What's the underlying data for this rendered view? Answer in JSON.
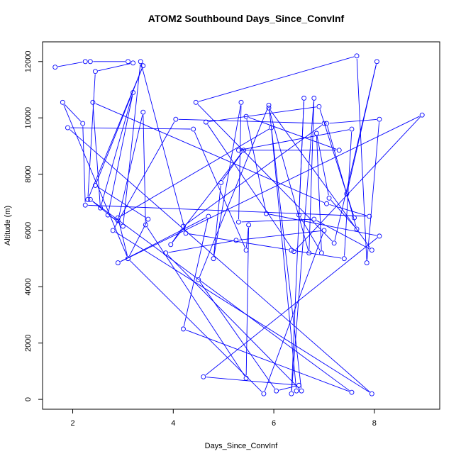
{
  "chart_data": {
    "type": "line",
    "title": "ATOM2 Southbound Days_Since_ConvInf",
    "xlabel": "Days_Since_ConvInf",
    "ylabel": "Altitude (m)",
    "xlim": [
      1.4,
      9.3
    ],
    "ylim": [
      -350,
      12700
    ],
    "xticks": [
      2,
      4,
      6,
      8
    ],
    "xtick_labels": [
      "2",
      "4",
      "6",
      "8"
    ],
    "yticks": [
      0,
      2000,
      4000,
      6000,
      8000,
      10000,
      12000
    ],
    "ytick_labels": [
      "0",
      "2000",
      "4000",
      "6000",
      "8000",
      "10000",
      "12000"
    ],
    "grid": false,
    "series": [
      {
        "color": "#0000ff",
        "marker": "open-circle",
        "points": [
          [
            1.65,
            11800
          ],
          [
            2.25,
            12000
          ],
          [
            2.35,
            12000
          ],
          [
            3.1,
            12000
          ],
          [
            3.2,
            11950
          ],
          [
            2.45,
            11650
          ],
          [
            2.3,
            7100
          ],
          [
            3.4,
            11850
          ],
          [
            2.45,
            7600
          ],
          [
            3.5,
            6400
          ],
          [
            3.1,
            5000
          ],
          [
            1.8,
            10550
          ],
          [
            2.2,
            9800
          ],
          [
            2.25,
            6900
          ],
          [
            7.9,
            6500
          ],
          [
            7.05,
            6950
          ],
          [
            2.4,
            10550
          ],
          [
            2.55,
            6800
          ],
          [
            3.2,
            10900
          ],
          [
            2.7,
            6550
          ],
          [
            2.9,
            6350
          ],
          [
            3.4,
            10200
          ],
          [
            3.45,
            6200
          ],
          [
            5.45,
            750
          ],
          [
            5.5,
            6200
          ],
          [
            5.45,
            5300
          ],
          [
            4.4,
            9600
          ],
          [
            1.9,
            9650
          ],
          [
            7.95,
            200
          ],
          [
            2.8,
            6000
          ],
          [
            4.05,
            9950
          ],
          [
            7.0,
            9800
          ],
          [
            4.2,
            6150
          ],
          [
            3.95,
            5500
          ],
          [
            5.4,
            8850
          ],
          [
            4.95,
            7700
          ],
          [
            4.8,
            5000
          ],
          [
            5.35,
            10550
          ],
          [
            5.3,
            6300
          ],
          [
            6.8,
            6400
          ],
          [
            7.95,
            5300
          ],
          [
            5.9,
            10350
          ],
          [
            6.7,
            5200
          ],
          [
            6.8,
            10700
          ],
          [
            6.35,
            200
          ],
          [
            6.6,
            10700
          ],
          [
            6.5,
            6550
          ],
          [
            6.95,
            5200
          ],
          [
            6.85,
            9450
          ],
          [
            7.1,
            7150
          ],
          [
            7.65,
            6050
          ],
          [
            7.05,
            9800
          ],
          [
            8.1,
            9950
          ],
          [
            7.85,
            4850
          ],
          [
            7.65,
            12200
          ],
          [
            4.45,
            10550
          ],
          [
            7.2,
            5550
          ],
          [
            8.05,
            12000
          ],
          [
            7.45,
            7300
          ],
          [
            7.6,
            6450
          ],
          [
            6.9,
            10400
          ],
          [
            4.65,
            9850
          ],
          [
            6.4,
            5250
          ],
          [
            8.95,
            10100
          ],
          [
            2.9,
            4850
          ],
          [
            4.7,
            6500
          ],
          [
            4.2,
            2500
          ],
          [
            7.55,
            250
          ],
          [
            2.35,
            7100
          ],
          [
            3.0,
            6150
          ],
          [
            3.35,
            12000
          ],
          [
            4.25,
            5900
          ],
          [
            6.35,
            5300
          ],
          [
            7.4,
            5000
          ],
          [
            7.55,
            9600
          ],
          [
            5.3,
            8850
          ],
          [
            7.3,
            8850
          ],
          [
            5.45,
            10050
          ],
          [
            5.85,
            6600
          ],
          [
            8.1,
            5800
          ],
          [
            4.6,
            800
          ],
          [
            6.5,
            500
          ],
          [
            6.05,
            300
          ],
          [
            4.5,
            4250
          ],
          [
            5.9,
            10450
          ],
          [
            6.55,
            300
          ],
          [
            3.85,
            5200
          ],
          [
            5.25,
            5650
          ],
          [
            7.0,
            6000
          ],
          [
            5.8,
            200
          ],
          [
            3.1,
            5000
          ],
          [
            2.9,
            6450
          ],
          [
            5.95,
            9650
          ],
          [
            6.45,
            300
          ]
        ]
      }
    ]
  }
}
